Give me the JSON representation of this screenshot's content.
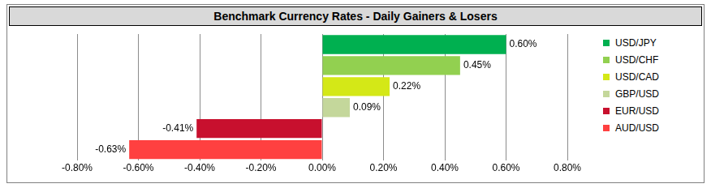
{
  "chart_data": {
    "type": "bar",
    "title": "Benchmark Currency Rates - Daily Gainers & Losers",
    "orientation": "horizontal",
    "categories": [
      "USD/JPY",
      "USD/CHF",
      "USD/CAD",
      "GBP/USD",
      "EUR/USD",
      "AUD/USD"
    ],
    "values": [
      0.6,
      0.45,
      0.22,
      0.09,
      -0.41,
      -0.63
    ],
    "value_labels": [
      "0.60%",
      "0.45%",
      "0.22%",
      "0.09%",
      "-0.41%",
      "-0.63%"
    ],
    "colors": [
      "#00b050",
      "#92d050",
      "#d4e817",
      "#c4d79b",
      "#c8102e",
      "#ff4040"
    ],
    "xlim": [
      -0.8,
      0.8
    ],
    "xticks": [
      {
        "value": -0.8,
        "label": "-0.80%"
      },
      {
        "value": -0.6,
        "label": "-0.60%"
      },
      {
        "value": -0.4,
        "label": "-0.40%"
      },
      {
        "value": -0.2,
        "label": "-0.20%"
      },
      {
        "value": 0,
        "label": "0.00%"
      },
      {
        "value": 0.2,
        "label": "0.20%"
      },
      {
        "value": 0.4,
        "label": "0.40%"
      },
      {
        "value": 0.6,
        "label": "0.60%"
      },
      {
        "value": 0.8,
        "label": "0.80%"
      }
    ],
    "grid": true,
    "legend": "right",
    "data_labels": true,
    "tick_labels": "x"
  }
}
